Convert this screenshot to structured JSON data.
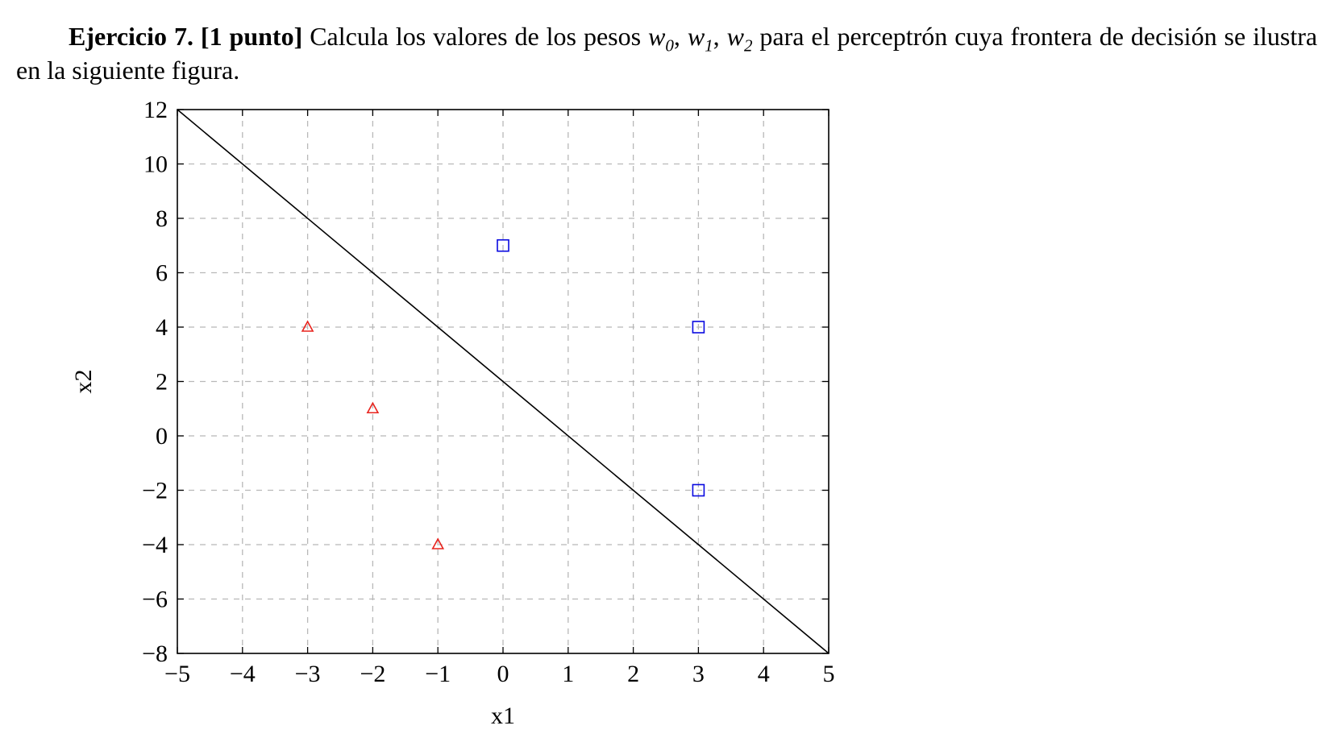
{
  "exercise": {
    "label": "Ejercicio 7.",
    "points_label": "[1 punto]",
    "text_before": "Calcula los valores de los pesos",
    "weights": [
      {
        "symbol": "w",
        "index": "0"
      },
      {
        "symbol": "w",
        "index": "1"
      },
      {
        "symbol": "w",
        "index": "2"
      }
    ],
    "text_line1_end": "para el perceptrón cuya frontera",
    "text_line2": "de decisión se ilustra en la siguiente figura."
  },
  "chart_data": {
    "type": "scatter",
    "title": "",
    "xlabel": "x1",
    "ylabel": "x2",
    "xlim": [
      -5,
      5
    ],
    "ylim": [
      -8,
      12
    ],
    "xticks": [
      -5,
      -4,
      -3,
      -2,
      -1,
      0,
      1,
      2,
      3,
      4,
      5
    ],
    "yticks": [
      -8,
      -6,
      -4,
      -2,
      0,
      2,
      4,
      6,
      8,
      10,
      12
    ],
    "xtick_labels": [
      "−5",
      "−4",
      "−3",
      "−2",
      "−1",
      "0",
      "1",
      "2",
      "3",
      "4",
      "5"
    ],
    "ytick_labels": [
      "−8",
      "−6",
      "−4",
      "−2",
      "0",
      "2",
      "4",
      "6",
      "8",
      "10",
      "12"
    ],
    "grid": true,
    "grid_style": "dashed",
    "boundary_line": {
      "x": [
        -5,
        5
      ],
      "y": [
        12,
        -8
      ],
      "color": "#000000"
    },
    "series": [
      {
        "marker": "triangle",
        "color": "#e8231d",
        "points": [
          [
            -3,
            4
          ],
          [
            -2,
            1
          ],
          [
            -1,
            -4
          ]
        ]
      },
      {
        "marker": "square",
        "color": "#0a0ae0",
        "points": [
          [
            0,
            7
          ],
          [
            3,
            4
          ],
          [
            3,
            -2
          ]
        ]
      }
    ]
  }
}
